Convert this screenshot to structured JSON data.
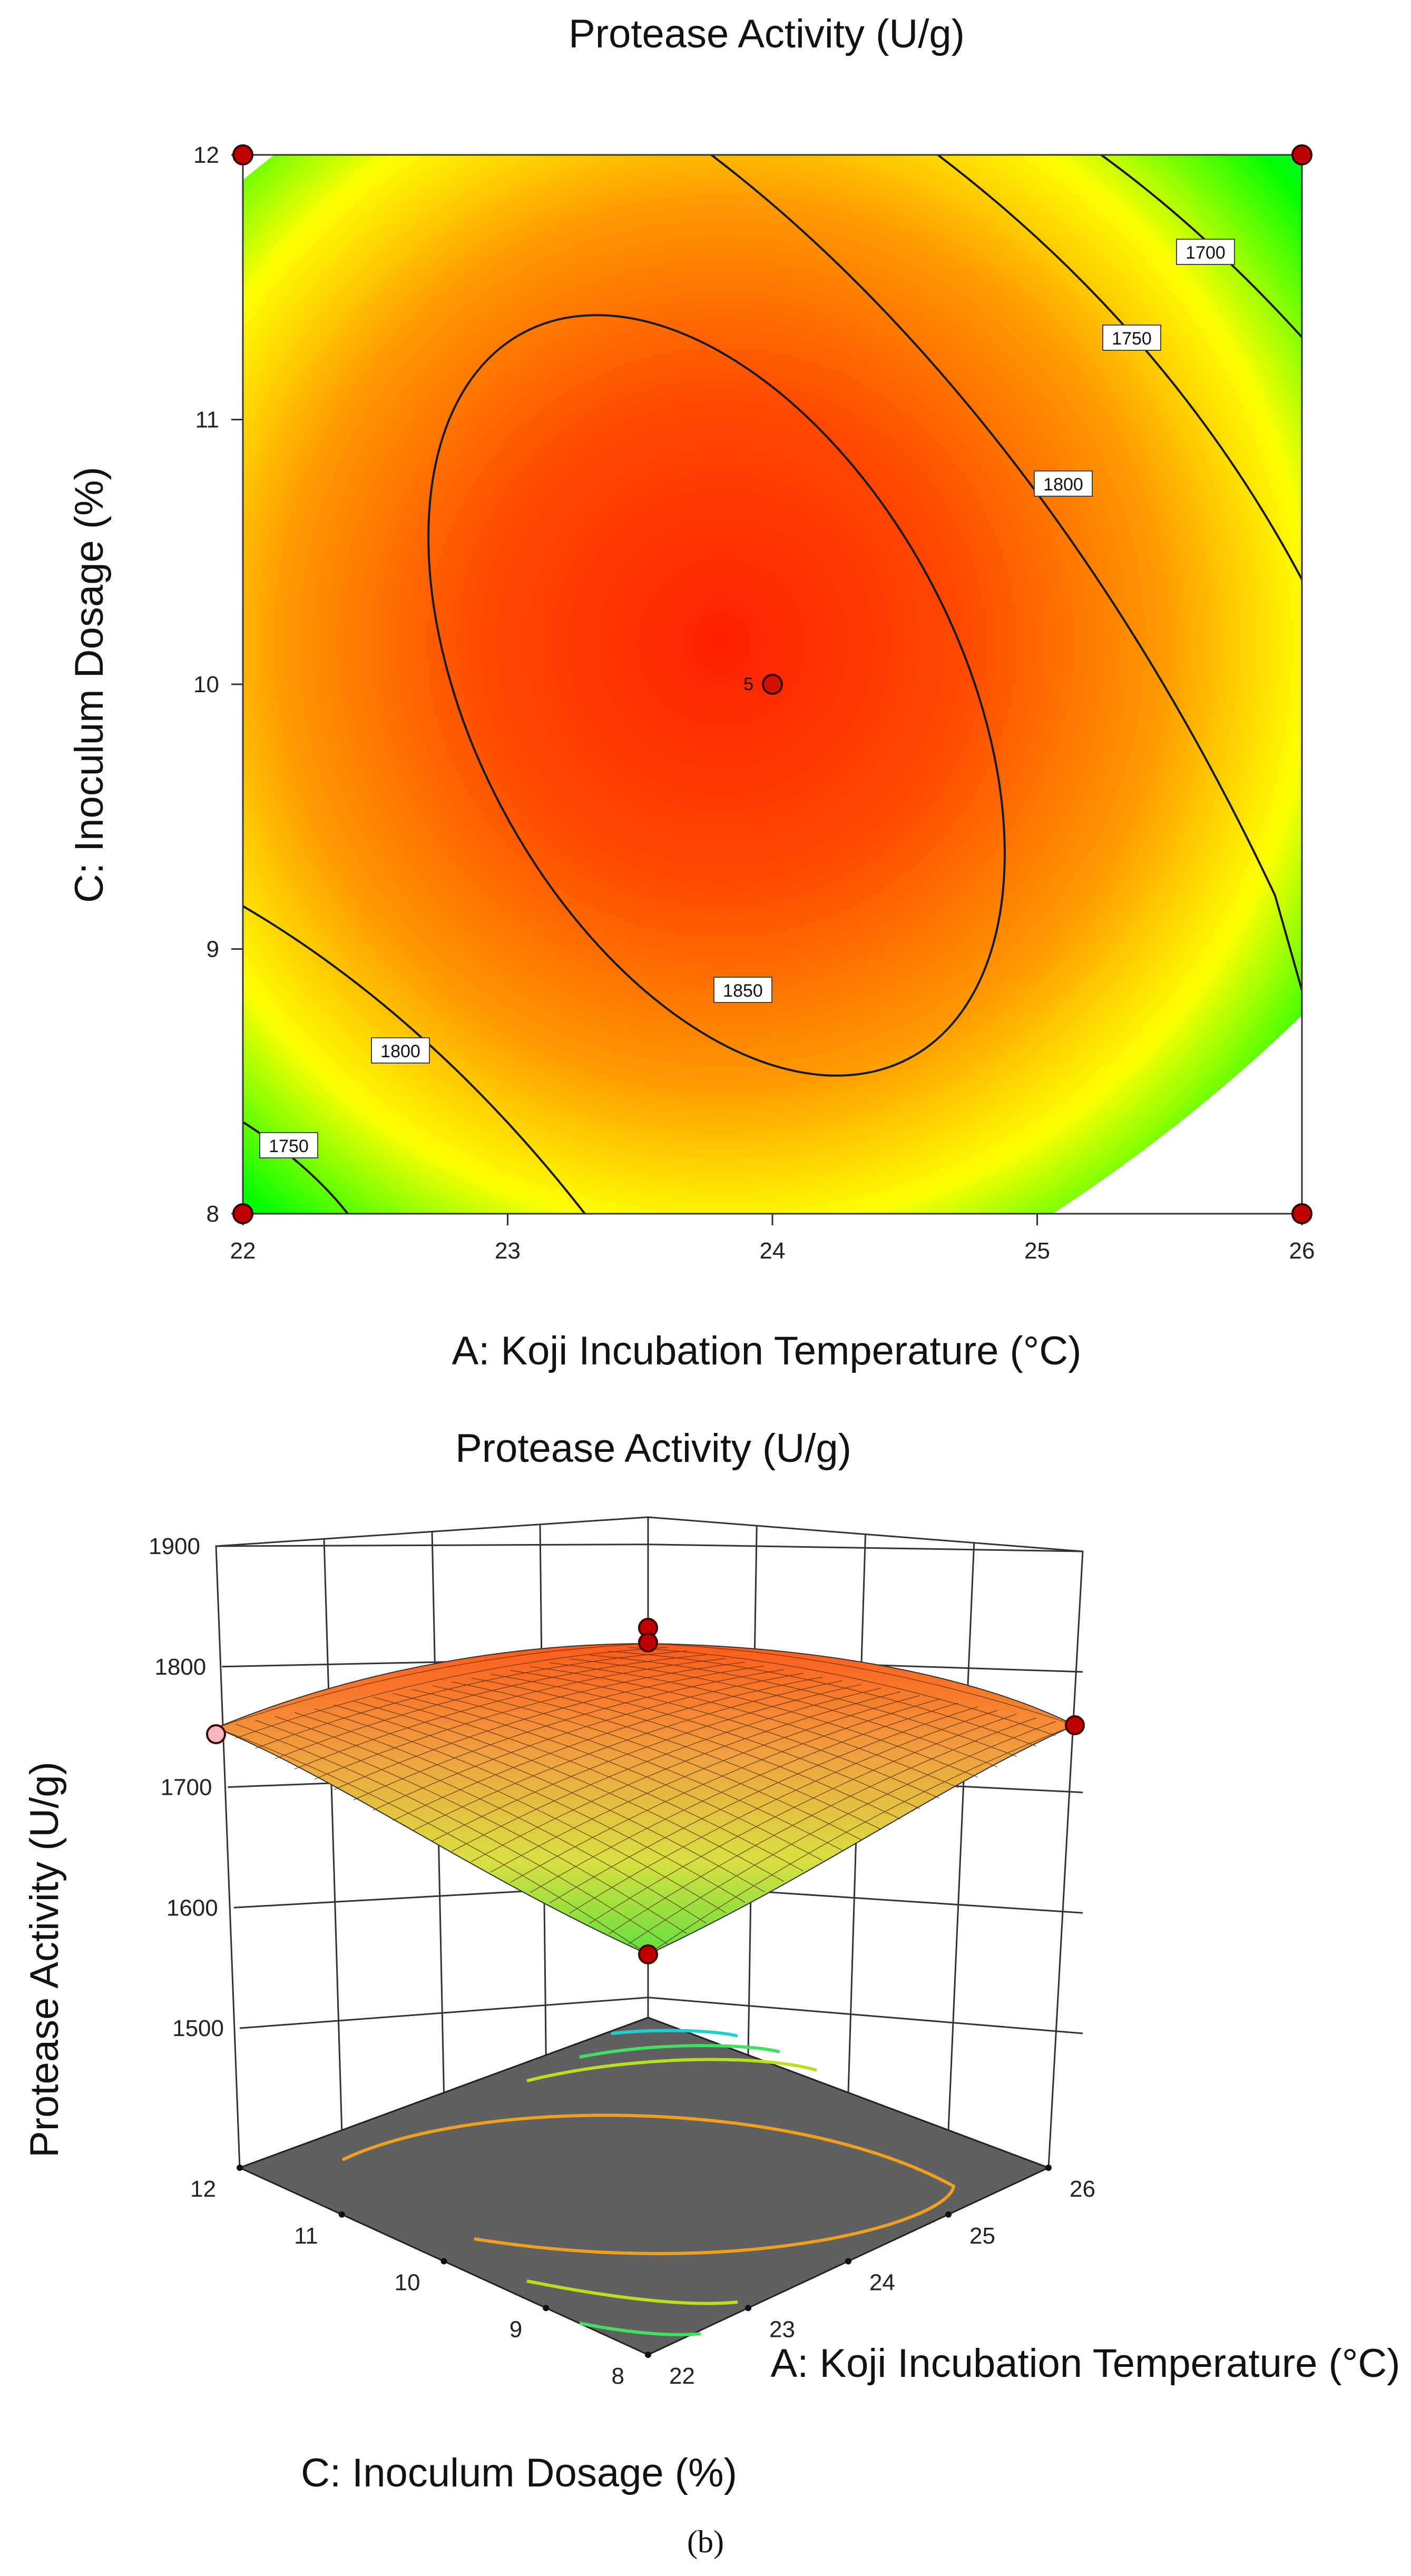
{
  "chart_data": [
    {
      "type": "contour",
      "title": "Protease Activity (U/g)",
      "xlabel": "A: Koji Incubation Temperature (°C)",
      "ylabel": "C: Inoculum Dosage (%)",
      "xlim": [
        22,
        26
      ],
      "ylim": [
        8,
        12
      ],
      "xticks": [
        "22",
        "23",
        "24",
        "25",
        "26"
      ],
      "yticks": [
        "8",
        "9",
        "10",
        "11",
        "12"
      ],
      "contour_levels": [
        {
          "value": 1850,
          "label": "1850"
        },
        {
          "value": 1800,
          "label": "1800"
        },
        {
          "value": 1800,
          "label": "1800"
        },
        {
          "value": 1750,
          "label": "1750"
        },
        {
          "value": 1750,
          "label": "1750"
        },
        {
          "value": 1700,
          "label": "1700"
        }
      ],
      "design_points": [
        {
          "x": 22,
          "y": 12
        },
        {
          "x": 26,
          "y": 12
        },
        {
          "x": 22,
          "y": 8
        },
        {
          "x": 26,
          "y": 8
        },
        {
          "x": 24,
          "y": 10,
          "label": "5"
        }
      ]
    },
    {
      "type": "surface3d",
      "title": "Protease Activity (U/g)",
      "xlabel": "A: Koji Incubation Temperature (°C)",
      "ylabel": "C: Inoculum Dosage (%)",
      "zlabel": "Protease Activity (U/g)",
      "xlim": [
        22,
        26
      ],
      "ylim": [
        8,
        12
      ],
      "zlim": [
        1500,
        1900
      ],
      "xticks": [
        "22",
        "23",
        "24",
        "25",
        "26"
      ],
      "yticks": [
        "8",
        "9",
        "10",
        "11",
        "12"
      ],
      "zticks": [
        "1500",
        "1600",
        "1700",
        "1800",
        "1900"
      ]
    }
  ],
  "caption": "(b)",
  "colors": {
    "hot": "#ff2a00",
    "warm": "#ff9a00",
    "mid": "#ffff00",
    "cool": "#00ff00",
    "cold": "#00ffff",
    "floor": "#5f5f5f",
    "point": "#c00000"
  }
}
